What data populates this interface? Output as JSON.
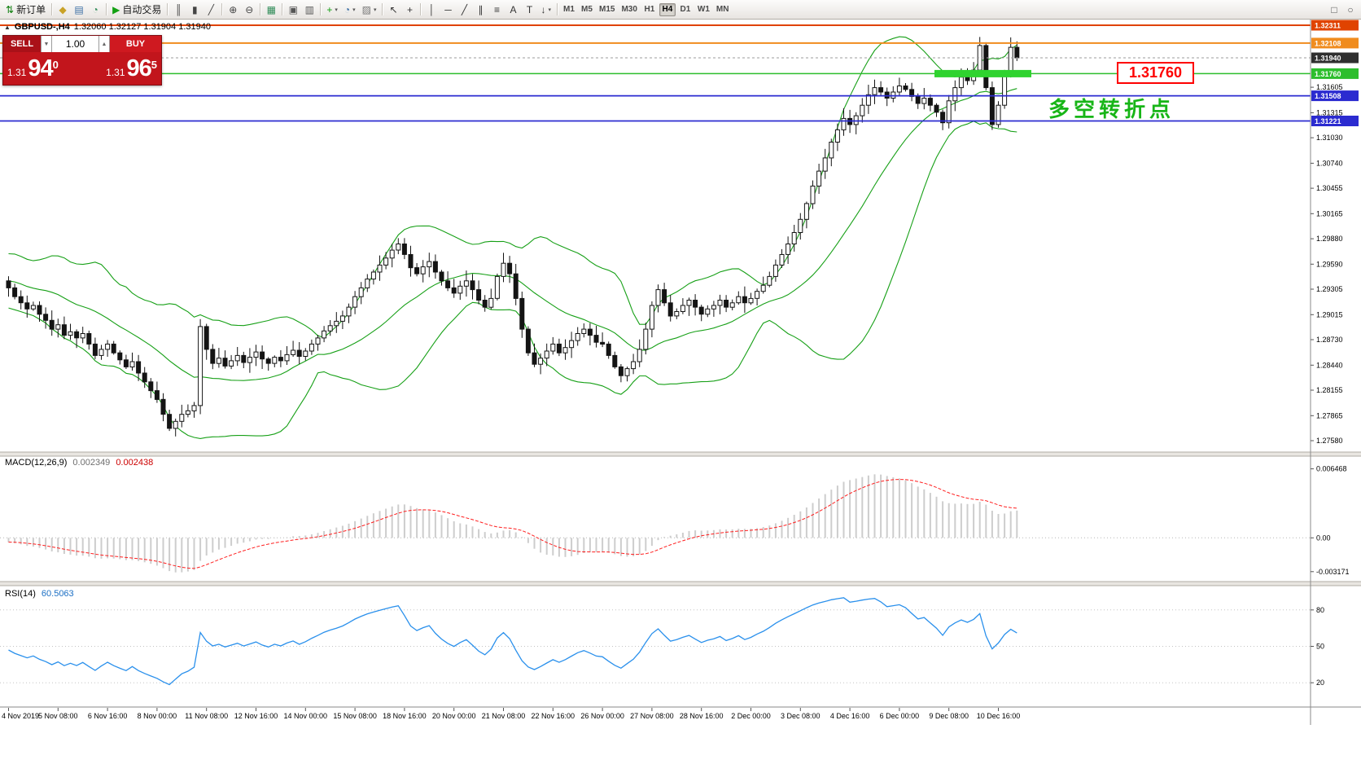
{
  "toolbar": {
    "caret_glyph": "▾",
    "groups": [
      {
        "items": [
          {
            "name": "new-order",
            "glyph": "⇅",
            "color": "#0b7d0b",
            "label": "新订单"
          }
        ]
      },
      {
        "items": [
          {
            "name": "mql-community",
            "glyph": "◆",
            "color": "#c9a227"
          },
          {
            "name": "data-window",
            "glyph": "▤",
            "color": "#3a6ea5"
          },
          {
            "name": "market-watch",
            "glyph": "◔",
            "color": "#2e8b57"
          }
        ]
      },
      {
        "items": [
          {
            "name": "autotrading",
            "glyph": "▶",
            "color": "#12a012",
            "label": "自动交易"
          }
        ]
      },
      {
        "items": [
          {
            "name": "chart-bars",
            "glyph": "║",
            "color": "#444444"
          },
          {
            "name": "chart-candles",
            "glyph": "▮",
            "color": "#444444"
          },
          {
            "name": "chart-line",
            "glyph": "╱",
            "color": "#444444"
          }
        ]
      },
      {
        "items": [
          {
            "name": "zoom-in",
            "glyph": "⊕",
            "color": "#444444"
          },
          {
            "name": "zoom-out",
            "glyph": "⊖",
            "color": "#444444"
          }
        ]
      },
      {
        "items": [
          {
            "name": "tile-windows",
            "glyph": "▦",
            "color": "#2e8b57"
          }
        ]
      },
      {
        "items": [
          {
            "name": "arrange-cascade",
            "glyph": "▣",
            "color": "#555555"
          },
          {
            "name": "arrange-tile",
            "glyph": "▥",
            "color": "#555555"
          }
        ]
      },
      {
        "items": [
          {
            "name": "indicators",
            "glyph": "+",
            "color": "#12a012",
            "caret": true
          },
          {
            "name": "periods",
            "glyph": "◔",
            "color": "#3a6ea5",
            "caret": true
          },
          {
            "name": "templates",
            "glyph": "▨",
            "color": "#777777",
            "caret": true
          }
        ]
      },
      {
        "items": [
          {
            "name": "cursor",
            "glyph": "↖",
            "color": "#333333"
          },
          {
            "name": "crosshair",
            "glyph": "+",
            "color": "#333333"
          }
        ]
      },
      {
        "items": [
          {
            "name": "vertical-line",
            "glyph": "│",
            "color": "#333333"
          },
          {
            "name": "horizontal-line",
            "glyph": "─",
            "color": "#333333"
          },
          {
            "name": "trendline",
            "glyph": "╱",
            "color": "#333333"
          },
          {
            "name": "channel",
            "glyph": "∥",
            "color": "#333333"
          },
          {
            "name": "fibonacci",
            "glyph": "≡",
            "color": "#333333"
          },
          {
            "name": "text",
            "glyph": "A",
            "color": "#333333"
          },
          {
            "name": "text-label",
            "glyph": "T",
            "color": "#333333"
          },
          {
            "name": "arrows",
            "glyph": "↓",
            "color": "#333333",
            "caret": true
          }
        ]
      }
    ],
    "timeframes": [
      "M1",
      "M5",
      "M15",
      "M30",
      "H1",
      "H4",
      "D1",
      "W1",
      "MN"
    ],
    "active_timeframe": "H4",
    "right_items": [
      {
        "name": "window-list",
        "glyph": "□",
        "color": "#555555"
      },
      {
        "name": "search",
        "glyph": "○",
        "color": "#555555"
      }
    ]
  },
  "chart_title": {
    "icon": "▲",
    "symbol_period": "GBPUSD-,H4",
    "ohlc": "1.32060 1.32127 1.31904 1.31940"
  },
  "trade_panel": {
    "sell_label": "SELL",
    "buy_label": "BUY",
    "volume": "1.00",
    "spin_down": "▼",
    "spin_up": "▲",
    "sell_price": {
      "prefix": "1.31",
      "big": "94",
      "sup": "0"
    },
    "buy_price": {
      "prefix": "1.31",
      "big": "96",
      "sup": "5"
    }
  },
  "annotations": {
    "price_box": "1.31760",
    "note": "多空转折点"
  },
  "colors": {
    "bollinger": "#17a017",
    "candle_up": "#ffffff",
    "candle_down": "#141414",
    "candle_stroke": "#141414",
    "macd_histogram": "#cdcdcd",
    "macd_signal": "#ff1e1e",
    "rsi_line": "#2a90ec",
    "band": "#2fd32f",
    "axis_text": "#000000"
  },
  "chart_data": {
    "type": "candlestick",
    "symbol": "GBPUSD-",
    "timeframe": "H4",
    "bid": "1.31940",
    "last_bar_ohlc": {
      "open": 1.3206,
      "high": 1.32127,
      "low": 1.31904,
      "close": 1.3194
    },
    "first_open": 1.294,
    "ylim": [
      1.2758,
      1.32311
    ],
    "y_ticks": [
      "1.31605",
      "1.31315",
      "1.31030",
      "1.30740",
      "1.30455",
      "1.30165",
      "1.29880",
      "1.29590",
      "1.29305",
      "1.29015",
      "1.28730",
      "1.28440",
      "1.28155",
      "1.27865",
      "1.27580"
    ],
    "y_tick_values": [
      1.31605,
      1.31315,
      1.3103,
      1.3074,
      1.30455,
      1.30165,
      1.2988,
      1.2959,
      1.29305,
      1.29015,
      1.2873,
      1.2844,
      1.28155,
      1.27865,
      1.2758
    ],
    "time_labels": [
      "4 Nov 2019",
      "5 Nov 08:00",
      "6 Nov 16:00",
      "8 Nov 00:00",
      "11 Nov 08:00",
      "12 Nov 16:00",
      "14 Nov 00:00",
      "15 Nov 08:00",
      "18 Nov 16:00",
      "20 Nov 00:00",
      "21 Nov 08:00",
      "22 Nov 16:00",
      "26 Nov 00:00",
      "27 Nov 08:00",
      "28 Nov 16:00",
      "2 Dec 00:00",
      "3 Dec 08:00",
      "4 Dec 16:00",
      "6 Dec 00:00",
      "9 Dec 08:00",
      "10 Dec 16:00"
    ],
    "bars_per_label": 8,
    "closes": [
      1.2932,
      1.2922,
      1.2915,
      1.2908,
      1.2912,
      1.2902,
      1.2895,
      1.2885,
      1.289,
      1.2878,
      1.2882,
      1.2875,
      1.288,
      1.2868,
      1.2855,
      1.2862,
      1.2868,
      1.2858,
      1.285,
      1.2842,
      1.2848,
      1.2835,
      1.2825,
      1.2815,
      1.2805,
      1.2788,
      1.2772,
      1.278,
      1.2788,
      1.2792,
      1.2798,
      1.2888,
      1.2862,
      1.2846,
      1.2852,
      1.2843,
      1.2849,
      1.2855,
      1.2847,
      1.2853,
      1.2859,
      1.2851,
      1.2846,
      1.2853,
      1.2849,
      1.2856,
      1.2861,
      1.2854,
      1.286,
      1.2868,
      1.2875,
      1.2883,
      1.2889,
      1.2894,
      1.29,
      1.291,
      1.2922,
      1.2932,
      1.2942,
      1.295,
      1.2958,
      1.2966,
      1.2975,
      1.2982,
      1.297,
      1.2955,
      1.2948,
      1.2956,
      1.2962,
      1.295,
      1.294,
      1.2932,
      1.2926,
      1.2934,
      1.294,
      1.293,
      1.2918,
      1.291,
      1.292,
      1.2945,
      1.296,
      1.2948,
      1.292,
      1.2885,
      1.2858,
      1.2845,
      1.2852,
      1.286,
      1.2868,
      1.2858,
      1.2864,
      1.2872,
      1.288,
      1.2885,
      1.2878,
      1.287,
      1.2868,
      1.2855,
      1.2842,
      1.2832,
      1.284,
      1.2848,
      1.2862,
      1.2885,
      1.2912,
      1.293,
      1.2915,
      1.29,
      1.2905,
      1.2912,
      1.2918,
      1.291,
      1.2902,
      1.2908,
      1.2912,
      1.2918,
      1.291,
      1.2915,
      1.2922,
      1.2915,
      1.292,
      1.2928,
      1.2935,
      1.2945,
      1.2958,
      1.297,
      1.2982,
      1.2995,
      1.301,
      1.3028,
      1.3048,
      1.3065,
      1.308,
      1.3098,
      1.3112,
      1.3125,
      1.3118,
      1.3128,
      1.314,
      1.3152,
      1.316,
      1.3155,
      1.3148,
      1.3155,
      1.3162,
      1.3158,
      1.315,
      1.3142,
      1.3148,
      1.314,
      1.3132,
      1.312,
      1.3145,
      1.316,
      1.3172,
      1.3168,
      1.318,
      1.3208,
      1.316,
      1.3118,
      1.314,
      1.3178,
      1.3206,
      1.3194
    ],
    "overlays": {
      "bollinger": {
        "period": 20,
        "deviation": 2
      }
    },
    "levels": [
      {
        "price": 1.32311,
        "color": "#e04300",
        "lw": 2,
        "style": "solid"
      },
      {
        "price": 1.32108,
        "color": "#f08c1e",
        "lw": 2,
        "style": "solid"
      },
      {
        "price": 1.3194,
        "color": "#9b9b9b",
        "badge_color": "#2f2f2f",
        "lw": 1,
        "style": "dashed"
      },
      {
        "price": 1.3176,
        "color": "#2dbe2d",
        "lw": 1.5,
        "style": "solid",
        "band": {
          "from_bar": 150,
          "to_bar": 165,
          "height": 9
        }
      },
      {
        "price": 1.31508,
        "color": "#2b2bd0",
        "lw": 1.7,
        "style": "solid"
      },
      {
        "price": 1.31221,
        "color": "#2b2bd0",
        "lw": 1.7,
        "style": "solid"
      }
    ],
    "sub_charts": [
      {
        "type": "macd",
        "label": "MACD(12,26,9)",
        "value_main": "0.002349",
        "value_signal": "0.002438",
        "params": {
          "fast": 12,
          "slow": 26,
          "signal": 9
        },
        "axis_ticks": [
          "0.006468",
          "0.00",
          "-0.003171"
        ],
        "axis_tick_values": [
          0.006468,
          0,
          -0.003171
        ]
      },
      {
        "type": "rsi",
        "label": "RSI(14)",
        "value": "60.5063",
        "period": 14,
        "levels": [
          80,
          50,
          20
        ],
        "range": [
          0,
          100
        ]
      }
    ]
  }
}
